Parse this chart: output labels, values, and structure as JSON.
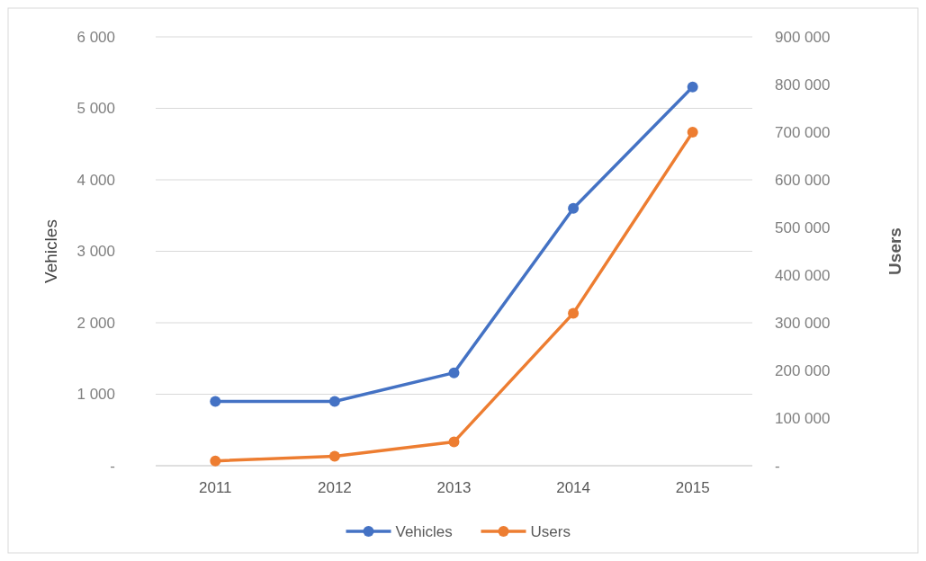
{
  "chart_data": {
    "type": "line",
    "categories": [
      "2011",
      "2012",
      "2013",
      "2014",
      "2015"
    ],
    "series": [
      {
        "name": "Vehicles",
        "color": "#4472c4",
        "values": [
          900,
          900,
          1300,
          3600,
          5300
        ]
      },
      {
        "name": "Users",
        "color": "#ed7d31",
        "values": [
          10000,
          20000,
          50000,
          320000,
          700000
        ],
        "axis": "y2"
      }
    ],
    "ylabel": "Vehicles",
    "y2label": "Users",
    "ylim": [
      0,
      6000
    ],
    "yticks": [
      {
        "value": 0,
        "label": "-"
      },
      {
        "value": 1000,
        "label": "1 000"
      },
      {
        "value": 2000,
        "label": "2 000"
      },
      {
        "value": 3000,
        "label": "3 000"
      },
      {
        "value": 4000,
        "label": "4 000"
      },
      {
        "value": 5000,
        "label": "5 000"
      },
      {
        "value": 6000,
        "label": "6 000"
      }
    ],
    "y2lim": [
      0,
      900000
    ],
    "y2ticks": [
      {
        "value": 0,
        "label": "-"
      },
      {
        "value": 100000,
        "label": "100 000"
      },
      {
        "value": 200000,
        "label": "200 000"
      },
      {
        "value": 300000,
        "label": "300 000"
      },
      {
        "value": 400000,
        "label": "400 000"
      },
      {
        "value": 500000,
        "label": "500 000"
      },
      {
        "value": 600000,
        "label": "600 000"
      },
      {
        "value": 700000,
        "label": "700 000"
      },
      {
        "value": 800000,
        "label": "800 000"
      },
      {
        "value": 900000,
        "label": "900 000"
      }
    ],
    "grid": "y",
    "legend": "bottom",
    "marker": "circle",
    "line_style": "solid"
  }
}
